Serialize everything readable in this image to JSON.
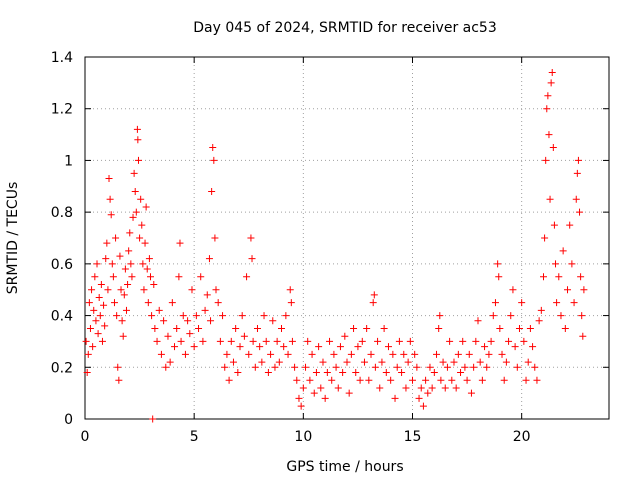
{
  "chart_data": {
    "type": "scatter",
    "title": "Day 045 of 2024, SRMTID for receiver ac53",
    "xlabel": "GPS time / hours",
    "ylabel": "SRMTID / TECUs",
    "xlim": [
      0,
      24
    ],
    "ylim": [
      0,
      1.4
    ],
    "xticks": [
      0,
      5,
      10,
      15,
      20
    ],
    "yticks": [
      0,
      0.2,
      0.4,
      0.6,
      0.8,
      1,
      1.2,
      1.4
    ],
    "xtick_labels": [
      "0",
      "5",
      "10",
      "15",
      "20"
    ],
    "ytick_labels": [
      "0",
      "0.2",
      "0.4",
      "0.6",
      "0.8",
      "1",
      "1.2",
      "1.4"
    ],
    "grid": true,
    "marker": "+",
    "color": "#ff0000",
    "series": [
      {
        "name": "SRMTID",
        "points": [
          [
            0.05,
            0.3
          ],
          [
            0.1,
            0.18
          ],
          [
            0.15,
            0.25
          ],
          [
            0.2,
            0.45
          ],
          [
            0.25,
            0.35
          ],
          [
            0.3,
            0.5
          ],
          [
            0.35,
            0.28
          ],
          [
            0.4,
            0.42
          ],
          [
            0.45,
            0.55
          ],
          [
            0.5,
            0.38
          ],
          [
            0.55,
            0.6
          ],
          [
            0.6,
            0.33
          ],
          [
            0.65,
            0.47
          ],
          [
            0.7,
            0.4
          ],
          [
            0.75,
            0.52
          ],
          [
            0.8,
            0.3
          ],
          [
            0.85,
            0.44
          ],
          [
            0.9,
            0.36
          ],
          [
            0.95,
            0.62
          ],
          [
            1.0,
            0.68
          ],
          [
            1.05,
            0.5
          ],
          [
            1.1,
            0.93
          ],
          [
            1.15,
            0.85
          ],
          [
            1.2,
            0.79
          ],
          [
            1.25,
            0.6
          ],
          [
            1.3,
            0.55
          ],
          [
            1.35,
            0.45
          ],
          [
            1.4,
            0.7
          ],
          [
            1.45,
            0.4
          ],
          [
            1.5,
            0.2
          ],
          [
            1.55,
            0.15
          ],
          [
            1.6,
            0.63
          ],
          [
            1.65,
            0.5
          ],
          [
            1.7,
            0.38
          ],
          [
            1.75,
            0.32
          ],
          [
            1.8,
            0.48
          ],
          [
            1.85,
            0.58
          ],
          [
            1.9,
            0.42
          ],
          [
            1.95,
            0.52
          ],
          [
            2.0,
            0.65
          ],
          [
            2.05,
            0.72
          ],
          [
            2.1,
            0.6
          ],
          [
            2.15,
            0.55
          ],
          [
            2.2,
            0.78
          ],
          [
            2.25,
            0.95
          ],
          [
            2.3,
            0.88
          ],
          [
            2.35,
            0.8
          ],
          [
            2.4,
            1.12
          ],
          [
            2.42,
            1.08
          ],
          [
            2.45,
            1.0
          ],
          [
            2.5,
            0.7
          ],
          [
            2.55,
            0.85
          ],
          [
            2.6,
            0.75
          ],
          [
            2.65,
            0.6
          ],
          [
            2.7,
            0.5
          ],
          [
            2.75,
            0.68
          ],
          [
            2.8,
            0.82
          ],
          [
            2.85,
            0.58
          ],
          [
            2.9,
            0.45
          ],
          [
            2.95,
            0.62
          ],
          [
            3.0,
            0.55
          ],
          [
            3.05,
            0.4
          ],
          [
            3.1,
            0.0
          ],
          [
            3.15,
            0.52
          ],
          [
            3.2,
            0.35
          ],
          [
            3.3,
            0.3
          ],
          [
            3.4,
            0.42
          ],
          [
            3.5,
            0.25
          ],
          [
            3.6,
            0.38
          ],
          [
            3.7,
            0.2
          ],
          [
            3.8,
            0.32
          ],
          [
            3.9,
            0.22
          ],
          [
            4.0,
            0.45
          ],
          [
            4.1,
            0.28
          ],
          [
            4.2,
            0.35
          ],
          [
            4.3,
            0.55
          ],
          [
            4.35,
            0.68
          ],
          [
            4.4,
            0.3
          ],
          [
            4.5,
            0.4
          ],
          [
            4.6,
            0.25
          ],
          [
            4.7,
            0.38
          ],
          [
            4.8,
            0.33
          ],
          [
            4.9,
            0.5
          ],
          [
            5.0,
            0.28
          ],
          [
            5.1,
            0.4
          ],
          [
            5.2,
            0.35
          ],
          [
            5.3,
            0.55
          ],
          [
            5.4,
            0.3
          ],
          [
            5.5,
            0.42
          ],
          [
            5.6,
            0.48
          ],
          [
            5.7,
            0.62
          ],
          [
            5.75,
            0.38
          ],
          [
            5.8,
            0.88
          ],
          [
            5.85,
            1.05
          ],
          [
            5.9,
            1.0
          ],
          [
            5.95,
            0.7
          ],
          [
            6.0,
            0.5
          ],
          [
            6.1,
            0.45
          ],
          [
            6.2,
            0.3
          ],
          [
            6.3,
            0.4
          ],
          [
            6.4,
            0.2
          ],
          [
            6.5,
            0.25
          ],
          [
            6.6,
            0.15
          ],
          [
            6.7,
            0.3
          ],
          [
            6.8,
            0.22
          ],
          [
            6.9,
            0.35
          ],
          [
            7.0,
            0.18
          ],
          [
            7.1,
            0.28
          ],
          [
            7.2,
            0.4
          ],
          [
            7.3,
            0.32
          ],
          [
            7.4,
            0.55
          ],
          [
            7.5,
            0.25
          ],
          [
            7.6,
            0.7
          ],
          [
            7.65,
            0.62
          ],
          [
            7.7,
            0.3
          ],
          [
            7.8,
            0.2
          ],
          [
            7.9,
            0.35
          ],
          [
            8.0,
            0.28
          ],
          [
            8.1,
            0.22
          ],
          [
            8.2,
            0.4
          ],
          [
            8.3,
            0.3
          ],
          [
            8.4,
            0.18
          ],
          [
            8.5,
            0.25
          ],
          [
            8.6,
            0.38
          ],
          [
            8.7,
            0.2
          ],
          [
            8.8,
            0.3
          ],
          [
            8.9,
            0.22
          ],
          [
            9.0,
            0.35
          ],
          [
            9.1,
            0.28
          ],
          [
            9.2,
            0.4
          ],
          [
            9.3,
            0.25
          ],
          [
            9.4,
            0.5
          ],
          [
            9.45,
            0.45
          ],
          [
            9.5,
            0.3
          ],
          [
            9.6,
            0.2
          ],
          [
            9.7,
            0.15
          ],
          [
            9.8,
            0.08
          ],
          [
            9.9,
            0.05
          ],
          [
            10.0,
            0.12
          ],
          [
            10.1,
            0.2
          ],
          [
            10.2,
            0.3
          ],
          [
            10.3,
            0.15
          ],
          [
            10.4,
            0.25
          ],
          [
            10.5,
            0.1
          ],
          [
            10.6,
            0.18
          ],
          [
            10.7,
            0.28
          ],
          [
            10.8,
            0.12
          ],
          [
            10.9,
            0.22
          ],
          [
            11.0,
            0.08
          ],
          [
            11.1,
            0.18
          ],
          [
            11.2,
            0.3
          ],
          [
            11.3,
            0.15
          ],
          [
            11.4,
            0.25
          ],
          [
            11.5,
            0.2
          ],
          [
            11.6,
            0.12
          ],
          [
            11.7,
            0.28
          ],
          [
            11.8,
            0.18
          ],
          [
            11.9,
            0.32
          ],
          [
            12.0,
            0.22
          ],
          [
            12.1,
            0.1
          ],
          [
            12.2,
            0.25
          ],
          [
            12.3,
            0.35
          ],
          [
            12.4,
            0.18
          ],
          [
            12.5,
            0.28
          ],
          [
            12.6,
            0.15
          ],
          [
            12.7,
            0.3
          ],
          [
            12.8,
            0.22
          ],
          [
            12.9,
            0.35
          ],
          [
            13.0,
            0.15
          ],
          [
            13.1,
            0.25
          ],
          [
            13.2,
            0.45
          ],
          [
            13.25,
            0.48
          ],
          [
            13.3,
            0.2
          ],
          [
            13.4,
            0.3
          ],
          [
            13.5,
            0.12
          ],
          [
            13.6,
            0.22
          ],
          [
            13.7,
            0.35
          ],
          [
            13.8,
            0.18
          ],
          [
            13.9,
            0.28
          ],
          [
            14.0,
            0.15
          ],
          [
            14.1,
            0.25
          ],
          [
            14.2,
            0.08
          ],
          [
            14.3,
            0.2
          ],
          [
            14.4,
            0.3
          ],
          [
            14.5,
            0.18
          ],
          [
            14.6,
            0.25
          ],
          [
            14.7,
            0.12
          ],
          [
            14.8,
            0.22
          ],
          [
            14.9,
            0.3
          ],
          [
            15.0,
            0.15
          ],
          [
            15.1,
            0.25
          ],
          [
            15.2,
            0.2
          ],
          [
            15.3,
            0.08
          ],
          [
            15.4,
            0.12
          ],
          [
            15.5,
            0.05
          ],
          [
            15.6,
            0.15
          ],
          [
            15.7,
            0.1
          ],
          [
            15.8,
            0.2
          ],
          [
            15.9,
            0.12
          ],
          [
            16.0,
            0.18
          ],
          [
            16.1,
            0.25
          ],
          [
            16.2,
            0.35
          ],
          [
            16.25,
            0.4
          ],
          [
            16.3,
            0.15
          ],
          [
            16.4,
            0.22
          ],
          [
            16.5,
            0.12
          ],
          [
            16.6,
            0.2
          ],
          [
            16.7,
            0.3
          ],
          [
            16.8,
            0.15
          ],
          [
            16.9,
            0.22
          ],
          [
            17.0,
            0.12
          ],
          [
            17.1,
            0.25
          ],
          [
            17.2,
            0.18
          ],
          [
            17.3,
            0.3
          ],
          [
            17.4,
            0.2
          ],
          [
            17.5,
            0.15
          ],
          [
            17.6,
            0.25
          ],
          [
            17.7,
            0.1
          ],
          [
            17.8,
            0.2
          ],
          [
            17.9,
            0.3
          ],
          [
            18.0,
            0.38
          ],
          [
            18.1,
            0.22
          ],
          [
            18.2,
            0.15
          ],
          [
            18.3,
            0.28
          ],
          [
            18.4,
            0.2
          ],
          [
            18.5,
            0.25
          ],
          [
            18.6,
            0.3
          ],
          [
            18.7,
            0.4
          ],
          [
            18.8,
            0.45
          ],
          [
            18.9,
            0.6
          ],
          [
            18.95,
            0.55
          ],
          [
            19.0,
            0.35
          ],
          [
            19.1,
            0.25
          ],
          [
            19.2,
            0.15
          ],
          [
            19.3,
            0.22
          ],
          [
            19.4,
            0.3
          ],
          [
            19.5,
            0.4
          ],
          [
            19.6,
            0.5
          ],
          [
            19.7,
            0.28
          ],
          [
            19.8,
            0.2
          ],
          [
            19.9,
            0.35
          ],
          [
            20.0,
            0.45
          ],
          [
            20.1,
            0.3
          ],
          [
            20.2,
            0.15
          ],
          [
            20.3,
            0.22
          ],
          [
            20.4,
            0.35
          ],
          [
            20.5,
            0.28
          ],
          [
            20.6,
            0.2
          ],
          [
            20.7,
            0.15
          ],
          [
            20.8,
            0.38
          ],
          [
            20.9,
            0.42
          ],
          [
            21.0,
            0.55
          ],
          [
            21.05,
            0.7
          ],
          [
            21.1,
            1.0
          ],
          [
            21.15,
            1.2
          ],
          [
            21.2,
            1.25
          ],
          [
            21.25,
            1.1
          ],
          [
            21.3,
            0.85
          ],
          [
            21.35,
            1.3
          ],
          [
            21.4,
            1.34
          ],
          [
            21.45,
            1.05
          ],
          [
            21.5,
            0.75
          ],
          [
            21.55,
            0.6
          ],
          [
            21.6,
            0.45
          ],
          [
            21.7,
            0.55
          ],
          [
            21.8,
            0.4
          ],
          [
            21.9,
            0.65
          ],
          [
            22.0,
            0.35
          ],
          [
            22.1,
            0.5
          ],
          [
            22.2,
            0.75
          ],
          [
            22.3,
            0.6
          ],
          [
            22.4,
            0.45
          ],
          [
            22.5,
            0.85
          ],
          [
            22.55,
            0.95
          ],
          [
            22.6,
            1.0
          ],
          [
            22.65,
            0.8
          ],
          [
            22.7,
            0.55
          ],
          [
            22.75,
            0.4
          ],
          [
            22.8,
            0.32
          ],
          [
            22.85,
            0.5
          ]
        ]
      }
    ]
  }
}
